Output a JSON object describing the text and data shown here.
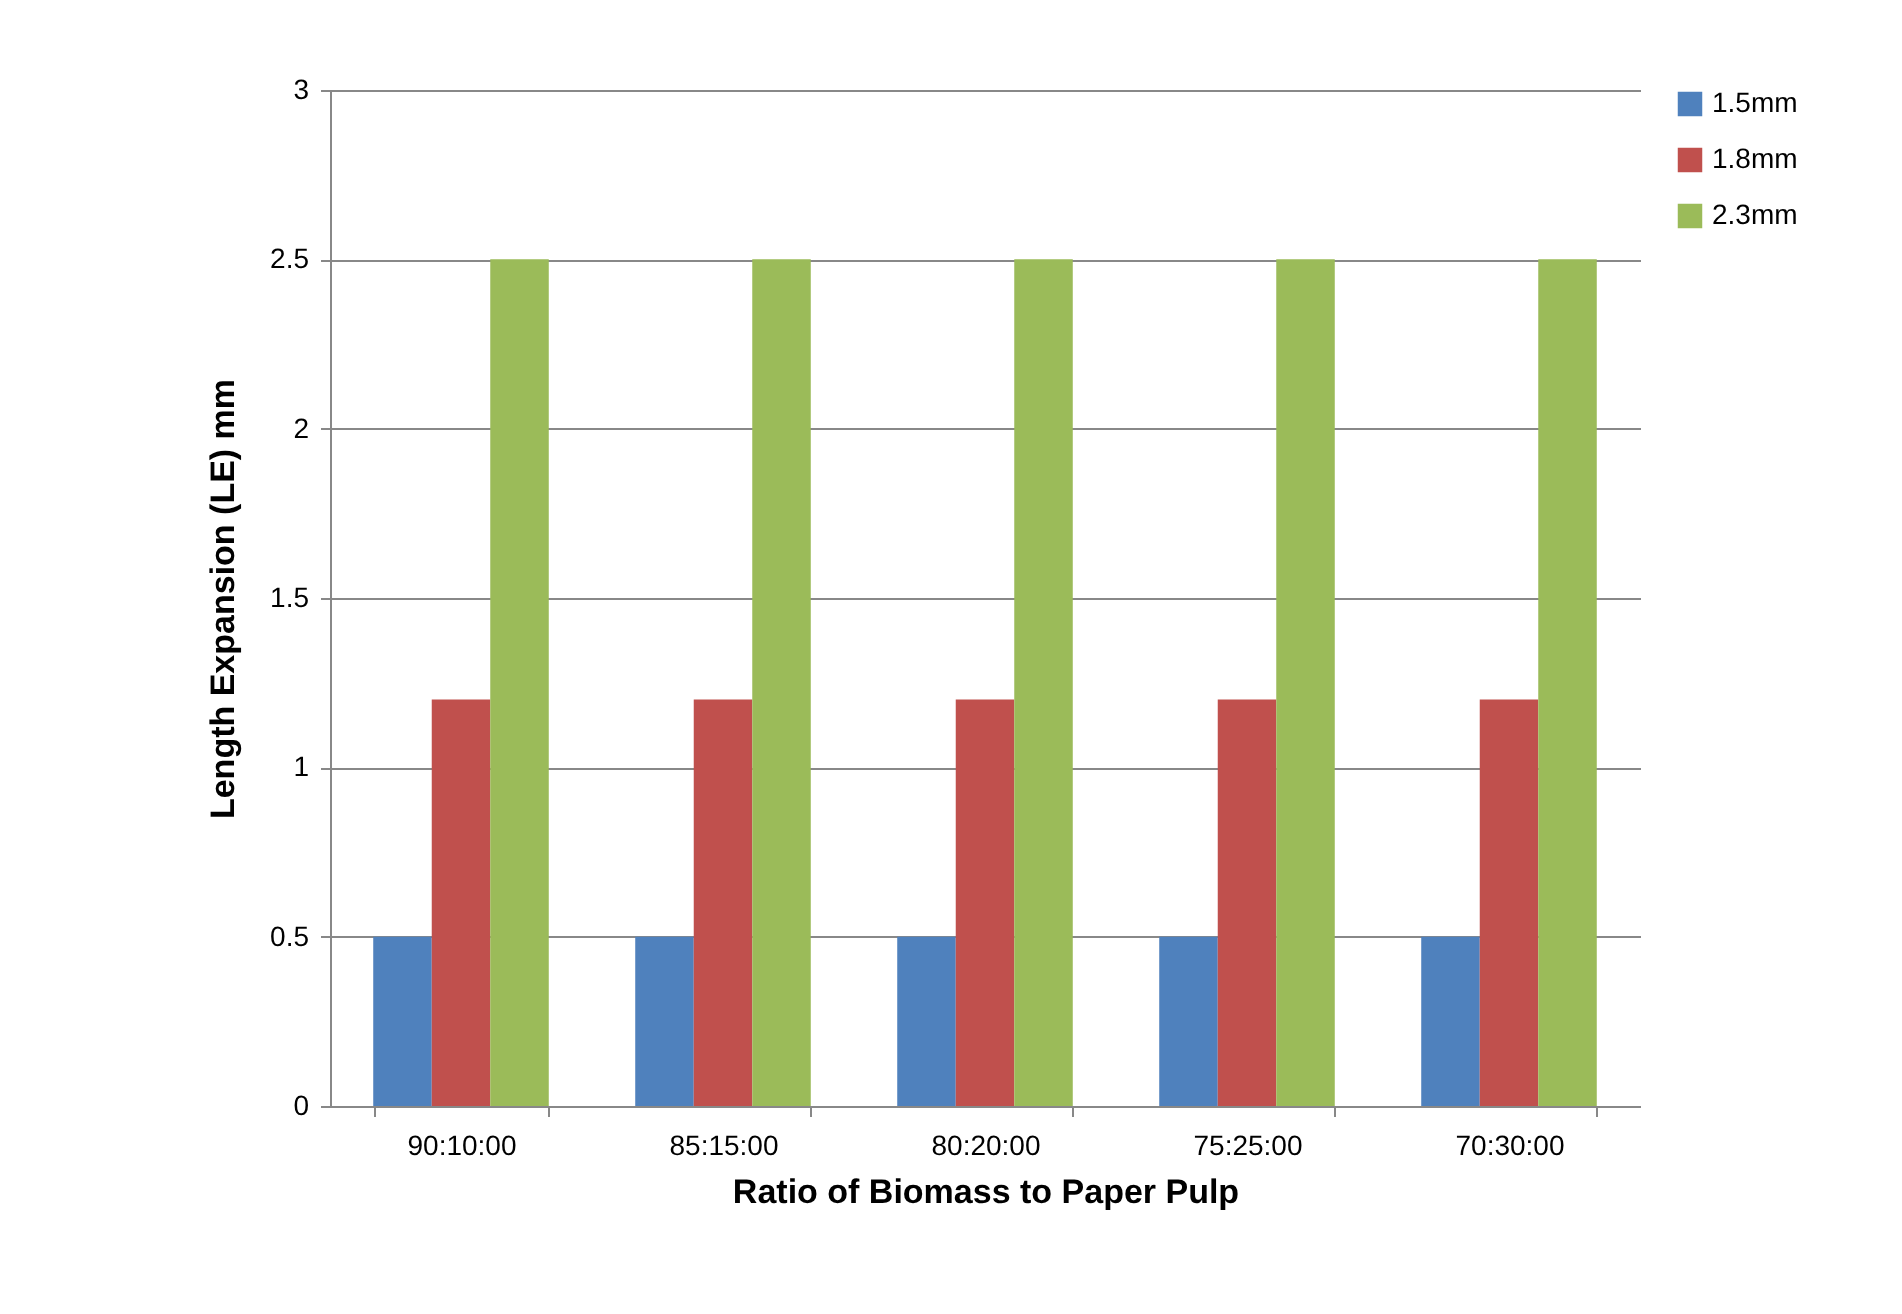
{
  "chart_data": {
    "type": "bar",
    "xlabel": "Ratio of Biomass to Paper Pulp",
    "ylabel": "Length Expansion (LE) mm",
    "categories": [
      "90:10:00",
      "85:15:00",
      "80:20:00",
      "75:25:00",
      "70:30:00"
    ],
    "series": [
      {
        "name": "1.5mm",
        "color": "#4f81bd",
        "values": [
          0.5,
          0.5,
          0.5,
          0.5,
          0.5
        ]
      },
      {
        "name": "1.8mm",
        "color": "#c0504d",
        "values": [
          1.2,
          1.2,
          1.2,
          1.2,
          1.2
        ]
      },
      {
        "name": "2.3mm",
        "color": "#9bbb59",
        "values": [
          2.5,
          2.5,
          2.5,
          2.5,
          2.5
        ]
      }
    ],
    "ylim": [
      0,
      3
    ],
    "yticks": [
      0,
      0.5,
      1,
      1.5,
      2,
      2.5,
      3
    ],
    "grid": "y",
    "legend": "right"
  }
}
